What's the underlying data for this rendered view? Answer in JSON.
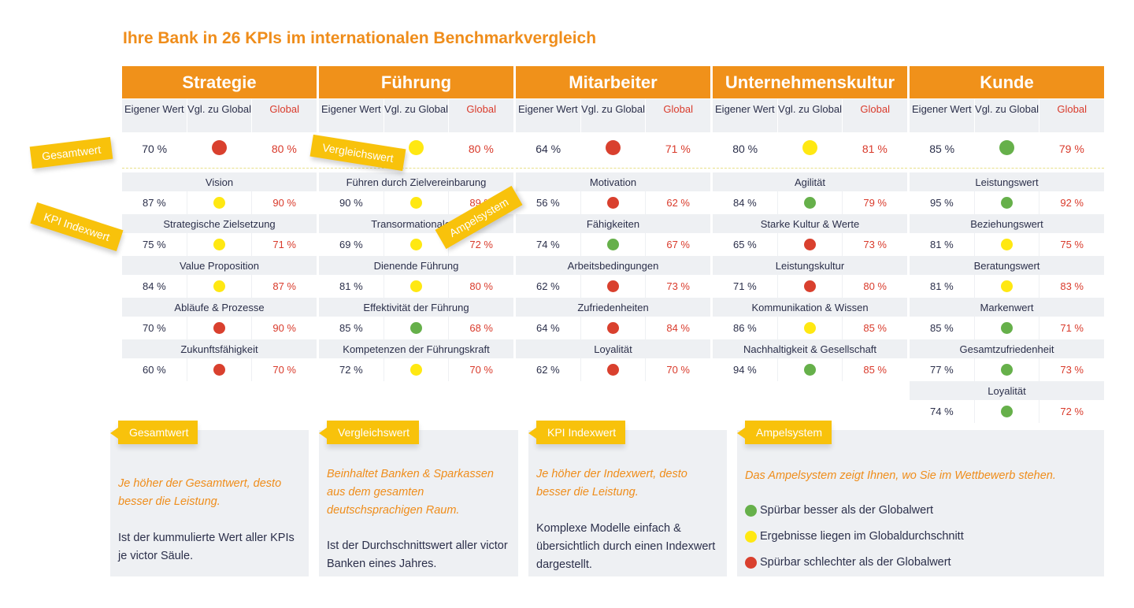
{
  "title": "Ihre Bank in 26 KPIs im internationalen Benchmarkvergleich",
  "subheaders": {
    "own": "Eigener Wert",
    "vgl": "Vgl. zu Global",
    "global": "Global"
  },
  "colors": {
    "orange": "#f0911a",
    "yellow_tag": "#f8c20b",
    "red": "#d9402e",
    "yellow": "#ffe812",
    "green": "#66b04a"
  },
  "columns": [
    {
      "name": "Strategie",
      "total": {
        "own": "70 %",
        "status": "red",
        "global": "80 %"
      },
      "kpis": [
        {
          "label": "Vision",
          "own": "87 %",
          "status": "yellow",
          "global": "90 %"
        },
        {
          "label": "Strategische Zielsetzung",
          "own": "75 %",
          "status": "yellow",
          "global": "71 %"
        },
        {
          "label": "Value Proposition",
          "own": "84 %",
          "status": "yellow",
          "global": "87 %"
        },
        {
          "label": "Abläufe & Prozesse",
          "own": "70 %",
          "status": "red",
          "global": "90 %"
        },
        {
          "label": "Zukunftsfähigkeit",
          "own": "60 %",
          "status": "red",
          "global": "70 %"
        }
      ]
    },
    {
      "name": "Führung",
      "total": {
        "own": "",
        "status": "yellow",
        "global": "80 %"
      },
      "kpis": [
        {
          "label": "Führen durch Zielvereinbarung",
          "own": "90 %",
          "status": "yellow",
          "global": "89 %"
        },
        {
          "label": "Transormationale F.",
          "own": "69 %",
          "status": "yellow",
          "global": "72 %"
        },
        {
          "label": "Dienende Führung",
          "own": "81 %",
          "status": "yellow",
          "global": "80 %"
        },
        {
          "label": "Effektivität der Führung",
          "own": "85 %",
          "status": "green",
          "global": "68 %"
        },
        {
          "label": "Kompetenzen der Führungskraft",
          "own": "72 %",
          "status": "yellow",
          "global": "70 %"
        }
      ]
    },
    {
      "name": "Mitarbeiter",
      "total": {
        "own": "64 %",
        "status": "red",
        "global": "71 %"
      },
      "kpis": [
        {
          "label": "Motivation",
          "own": "56 %",
          "status": "red",
          "global": "62 %"
        },
        {
          "label": "Fähigkeiten",
          "own": "74 %",
          "status": "green",
          "global": "67 %"
        },
        {
          "label": "Arbeitsbedingungen",
          "own": "62 %",
          "status": "red",
          "global": "73 %"
        },
        {
          "label": "Zufriedenheiten",
          "own": "64 %",
          "status": "red",
          "global": "84 %"
        },
        {
          "label": "Loyalität",
          "own": "62 %",
          "status": "red",
          "global": "70 %"
        }
      ]
    },
    {
      "name": "Unternehmenskultur",
      "total": {
        "own": "80 %",
        "status": "yellow",
        "global": "81 %"
      },
      "kpis": [
        {
          "label": "Agilität",
          "own": "84 %",
          "status": "green",
          "global": "79 %"
        },
        {
          "label": "Starke Kultur & Werte",
          "own": "65 %",
          "status": "red",
          "global": "73 %"
        },
        {
          "label": "Leistungskultur",
          "own": "71 %",
          "status": "red",
          "global": "80 %"
        },
        {
          "label": "Kommunikation & Wissen",
          "own": "86 %",
          "status": "yellow",
          "global": "85 %"
        },
        {
          "label": "Nachhaltigkeit & Gesellschaft",
          "own": "94 %",
          "status": "green",
          "global": "85 %"
        }
      ]
    },
    {
      "name": "Kunde",
      "total": {
        "own": "85 %",
        "status": "green",
        "global": "79 %"
      },
      "kpis": [
        {
          "label": "Leistungswert",
          "own": "95 %",
          "status": "green",
          "global": "92 %"
        },
        {
          "label": "Beziehungswert",
          "own": "81 %",
          "status": "yellow",
          "global": "75 %"
        },
        {
          "label": "Beratungswert",
          "own": "81 %",
          "status": "yellow",
          "global": "83 %"
        },
        {
          "label": "Markenwert",
          "own": "85 %",
          "status": "green",
          "global": "71 %"
        },
        {
          "label": "Gesamtzufriedenheit",
          "own": "77 %",
          "status": "green",
          "global": "73 %"
        },
        {
          "label": "Loyalität",
          "own": "74 %",
          "status": "green",
          "global": "72 %"
        }
      ]
    }
  ],
  "tags": {
    "gesamtwert": "Gesamtwert",
    "vergleichswert": "Vergleichswert",
    "kpi_indexwert": "KPI Indexwert",
    "ampelsystem": "Ampelsystem"
  },
  "cards": [
    {
      "tag": "Gesamtwert",
      "italic": "Je höher der Gesamtwert, desto besser die Leistung.",
      "body": "Ist der kummulierte Wert aller KPIs je victor Säule."
    },
    {
      "tag": "Vergleichswert",
      "italic": "Beinhaltet Banken & Sparkassen aus dem gesamten deutschsprachigen Raum.",
      "body": "Ist der Durchschnittswert aller victor Banken eines Jahres."
    },
    {
      "tag": "KPI Indexwert",
      "italic": "Je höher der Indexwert, desto besser die Leistung.",
      "body": "Komplexe Modelle einfach & übersichtlich durch einen Indexwert dargestellt."
    },
    {
      "tag": "Ampelsystem",
      "italic": "Das Ampelsystem zeigt Ihnen, wo Sie im Wettbewerb stehen.",
      "legend": [
        {
          "status": "green",
          "text": "Spürbar besser als der Globalwert"
        },
        {
          "status": "yellow",
          "text": "Ergebnisse liegen im Globaldurchschnitt"
        },
        {
          "status": "red",
          "text": "Spürbar schlechter als der Globalwert"
        }
      ]
    }
  ]
}
